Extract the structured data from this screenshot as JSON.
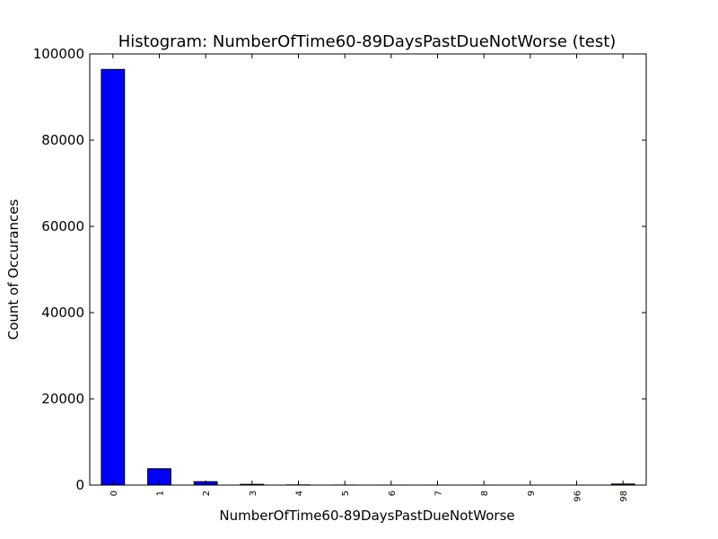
{
  "chart_data": {
    "type": "bar",
    "title": "Histogram: NumberOfTime60-89DaysPastDueNotWorse (test)",
    "xlabel": "NumberOfTime60-89DaysPastDueNotWorse",
    "ylabel": "Count of Occurances",
    "categories": [
      "0",
      "1",
      "2",
      "3",
      "4",
      "5",
      "6",
      "7",
      "8",
      "9",
      "96",
      "98"
    ],
    "values": [
      96400,
      3800,
      800,
      180,
      50,
      15,
      5,
      3,
      2,
      1,
      2,
      250
    ],
    "ylim": [
      0,
      100000
    ],
    "yticks": [
      "0",
      "20000",
      "40000",
      "60000",
      "80000",
      "100000"
    ],
    "bar_color": "#0000ff",
    "grid": false,
    "legend": "none"
  }
}
